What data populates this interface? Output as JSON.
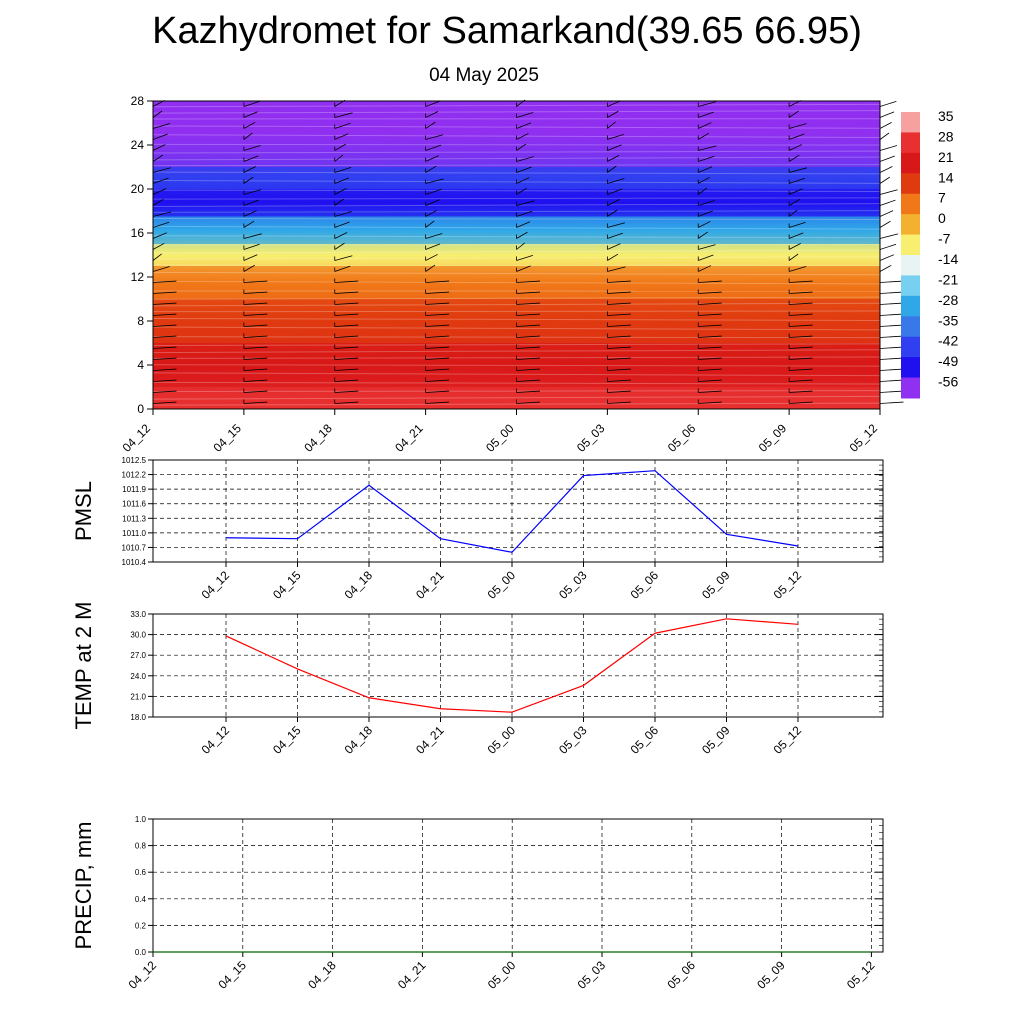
{
  "title": "Kazhydromet for Samarkand(39.65 66.95)",
  "subtitle": "04 May 2025",
  "time_labels": [
    "04_12",
    "04_15",
    "04_18",
    "04_21",
    "05_00",
    "05_03",
    "05_06",
    "05_09",
    "05_12"
  ],
  "colors": {
    "pmsl_line": "#0000ff",
    "temp_line": "#ff0000",
    "precip_line": "#006400",
    "grid": "#000000"
  },
  "chart_data": [
    {
      "type": "heatmap",
      "x": [
        "04_12",
        "04_15",
        "04_18",
        "04_21",
        "05_00",
        "05_03",
        "05_06",
        "05_09",
        "05_12"
      ],
      "y_ticks": [
        0,
        4,
        8,
        12,
        16,
        20,
        24,
        28
      ],
      "ylim": [
        0,
        28
      ],
      "zones": [
        {
          "from": 0,
          "to": 2,
          "temp": 28
        },
        {
          "from": 2,
          "to": 6,
          "temp": 21
        },
        {
          "from": 6,
          "to": 10,
          "temp": 14
        },
        {
          "from": 10,
          "to": 13,
          "temp": 7
        },
        {
          "from": 13,
          "to": 15,
          "temp": -7
        },
        {
          "from": 15,
          "to": 17.5,
          "temp": -28
        },
        {
          "from": 17.5,
          "to": 20,
          "temp": -49
        },
        {
          "from": 20,
          "to": 22,
          "temp": -42
        },
        {
          "from": 22,
          "to": 28,
          "temp": -56
        }
      ],
      "colorbar_labels": [
        "35",
        "28",
        "21",
        "14",
        "7",
        "0",
        "-7",
        "-14",
        "-21",
        "-28",
        "-35",
        "-42",
        "-49",
        "-56"
      ],
      "colorbar_colors": [
        "#f7a0a0",
        "#e83030",
        "#d81818",
        "#e03a10",
        "#f07818",
        "#f4b030",
        "#f8ee70",
        "#e8f4f4",
        "#78d0f0",
        "#30a8e8",
        "#3878e8",
        "#3040f0",
        "#2010f0",
        "#9030f0"
      ]
    },
    {
      "type": "line",
      "ylabel": "PMSL",
      "x": [
        "04_12",
        "04_15",
        "04_18",
        "04_21",
        "05_00",
        "05_03",
        "05_06",
        "05_09",
        "05_12"
      ],
      "y_ticks": [
        "1010.4",
        "1010.7",
        "1011.0",
        "1011.3",
        "1011.6",
        "1011.9",
        "1012.2",
        "1012.5"
      ],
      "ylim": [
        1010.4,
        1012.5
      ],
      "series": [
        {
          "values": [
            1010.9,
            1010.88,
            1011.98,
            1010.88,
            1010.6,
            1012.18,
            1012.28,
            1010.97,
            1010.73
          ]
        }
      ]
    },
    {
      "type": "line",
      "ylabel": "TEMP at 2 M",
      "x": [
        "04_12",
        "04_15",
        "04_18",
        "04_21",
        "05_00",
        "05_03",
        "05_06",
        "05_09",
        "05_12"
      ],
      "y_ticks": [
        "18.0",
        "21.0",
        "24.0",
        "27.0",
        "30.0",
        "33.0"
      ],
      "ylim": [
        18,
        33
      ],
      "series": [
        {
          "values": [
            29.8,
            25.0,
            20.8,
            19.2,
            18.7,
            22.6,
            30.2,
            32.3,
            31.5
          ]
        }
      ]
    },
    {
      "type": "line",
      "ylabel": "PRECIP, mm",
      "x": [
        "04_12",
        "04_15",
        "04_18",
        "04_21",
        "05_00",
        "05_03",
        "05_06",
        "05_09",
        "05_12"
      ],
      "y_ticks": [
        "0.0",
        "0.2",
        "0.4",
        "0.6",
        "0.8",
        "1.0"
      ],
      "ylim": [
        0,
        1
      ],
      "series": [
        {
          "values": [
            0,
            0,
            0,
            0,
            0,
            0,
            0,
            0,
            0
          ]
        }
      ]
    }
  ]
}
